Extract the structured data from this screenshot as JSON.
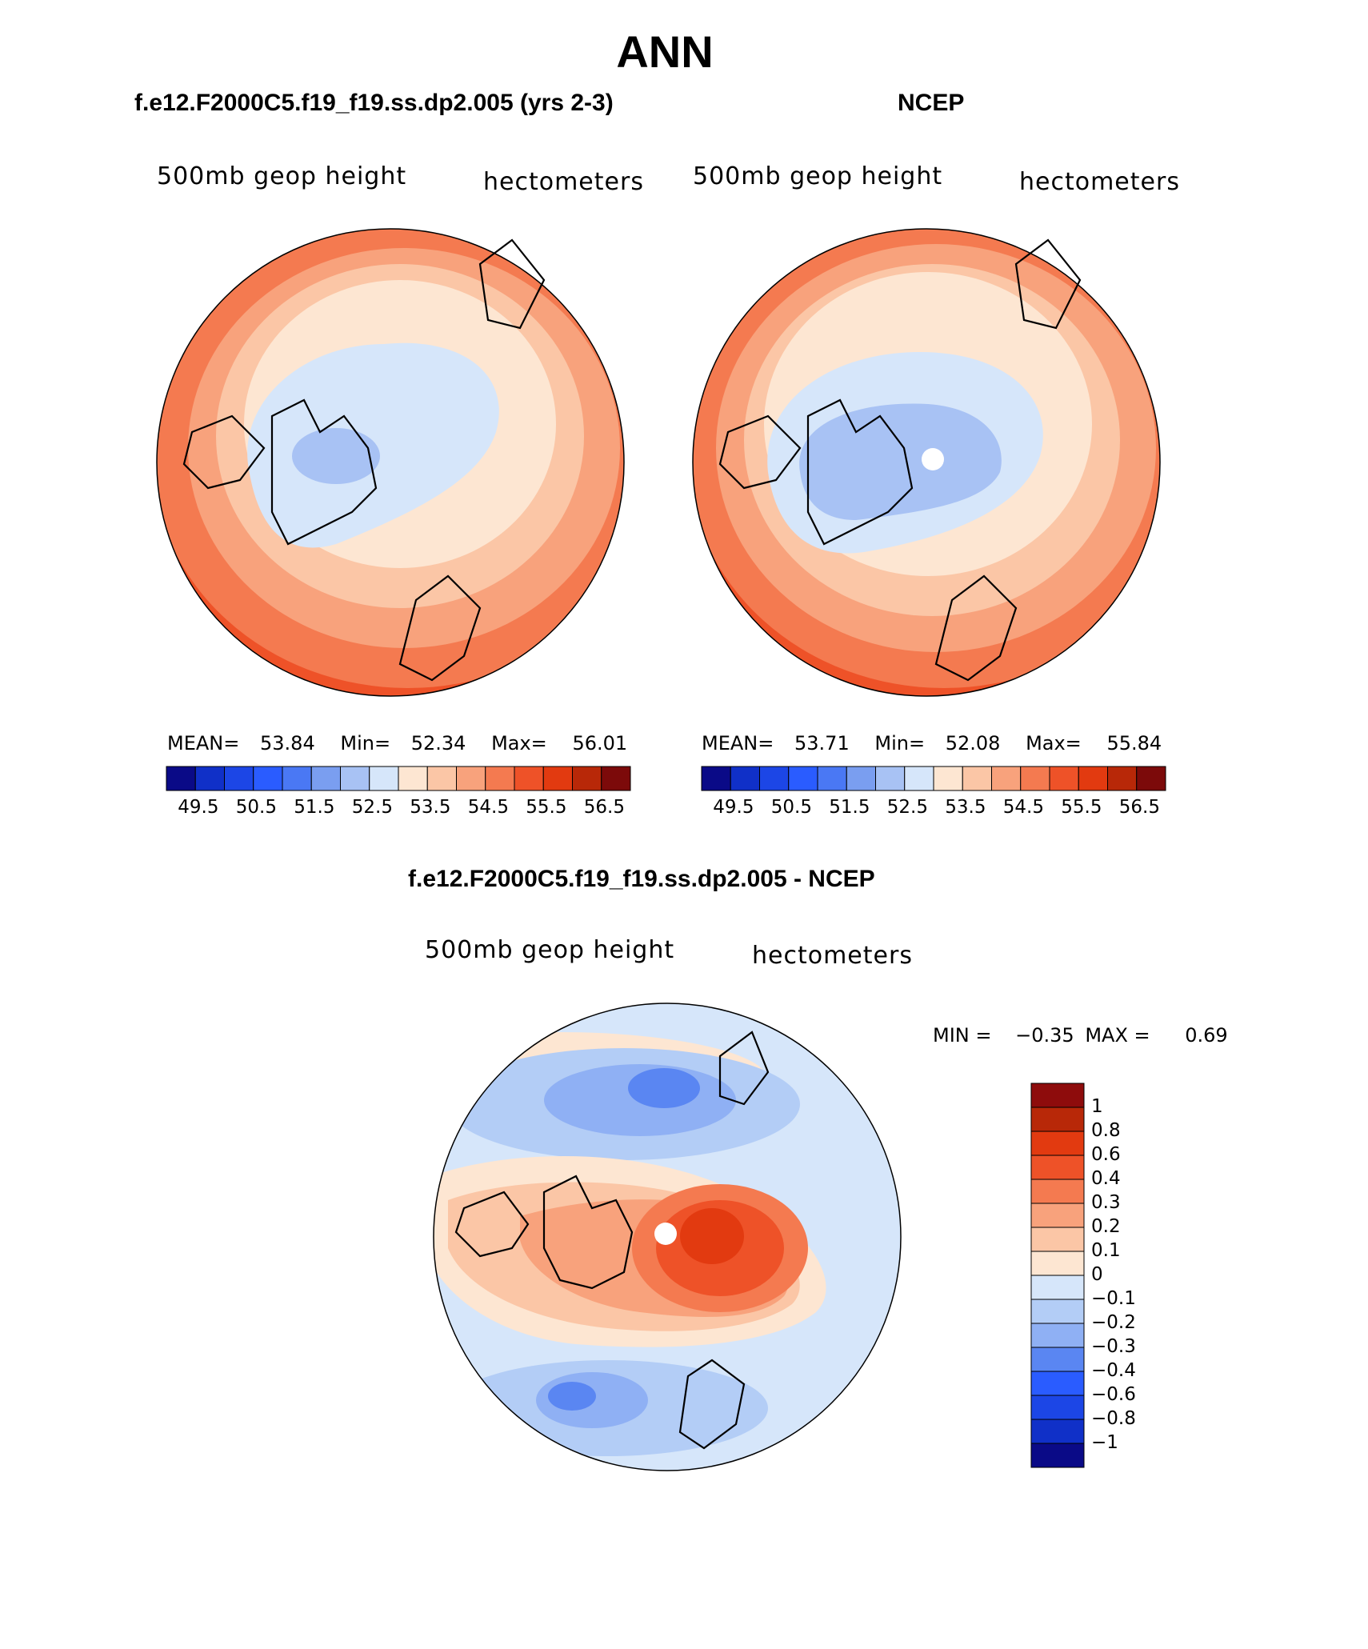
{
  "page": {
    "title": "ANN"
  },
  "panels": [
    {
      "title": "f.e12.F2000C5.f19_f19.ss.dp2.005 (yrs 2-3)",
      "left_label": "500mb geop height",
      "right_label": "hectometers",
      "stats": {
        "mean_label": "MEAN=",
        "mean": "53.84",
        "min_label": "Min=",
        "min": "52.34",
        "max_label": "Max=",
        "max": "56.01"
      }
    },
    {
      "title": "NCEP",
      "left_label": "500mb geop height",
      "right_label": "hectometers",
      "stats": {
        "mean_label": "MEAN=",
        "mean": "53.71",
        "min_label": "Min=",
        "min": "52.08",
        "max_label": "Max=",
        "max": "55.84"
      }
    },
    {
      "title": "f.e12.F2000C5.f19_f19.ss.dp2.005 - NCEP",
      "left_label": "500mb geop height",
      "right_label": "hectometers",
      "stats": {
        "min_label": "MIN =",
        "min": "−0.35",
        "max_label": "MAX =",
        "max": "0.69"
      }
    }
  ],
  "colorbar_main": {
    "colors": [
      "#0a0a87",
      "#1030c8",
      "#1c46e6",
      "#2a5cff",
      "#4a78f4",
      "#7a9ef0",
      "#a8c2f4",
      "#d6e6fa",
      "#fde6d2",
      "#fbc6a6",
      "#f8a27c",
      "#f47a50",
      "#ee5228",
      "#e23a10",
      "#b82808",
      "#7c0a0a"
    ],
    "tick_labels": [
      "49.5",
      "50.5",
      "51.5",
      "52.5",
      "53.5",
      "54.5",
      "55.5",
      "56.5"
    ]
  },
  "colorbar_diff": {
    "colors_top_to_bottom": [
      "#8e0c0c",
      "#b82808",
      "#e23a10",
      "#ee5228",
      "#f47a50",
      "#f8a27c",
      "#fbc6a6",
      "#fde6d2",
      "#d6e6fa",
      "#b3cdf6",
      "#8fb0f4",
      "#5a86f2",
      "#2a5cff",
      "#1c46e6",
      "#1030c8",
      "#0a0a87"
    ],
    "tick_labels": [
      "1",
      "0.8",
      "0.6",
      "0.4",
      "0.3",
      "0.2",
      "0.1",
      "0",
      "−0.1",
      "−0.2",
      "−0.3",
      "−0.4",
      "−0.6",
      "−0.8",
      "−1"
    ]
  },
  "map_colors": {
    "c1": "#7c0a0a",
    "c2": "#b82808",
    "c3": "#e23a10",
    "c4": "#ee5228",
    "c5": "#f47a50",
    "c6": "#f8a27c",
    "c7": "#fbc6a6",
    "c8": "#fde6d2",
    "c9": "#d6e6fa",
    "c10": "#a8c2f4",
    "d_pos1": "#e23a10",
    "d_pos2": "#ee5228",
    "d_pos3": "#f47a50",
    "d_pos4": "#f8a27c",
    "d_pos5": "#fbc6a6",
    "d_pos6": "#fde6d2",
    "d_neg1": "#d6e6fa",
    "d_neg2": "#b3cdf6",
    "d_neg3": "#8fb0f4",
    "d_neg4": "#5a86f2"
  }
}
